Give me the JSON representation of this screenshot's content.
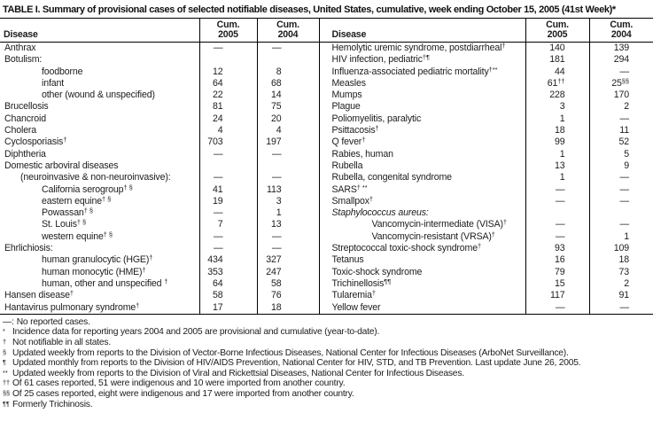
{
  "title": "TABLE I. Summary of provisional cases of selected notifiable diseases, United States, cumulative, week ending October 15, 2005 (41st Week)*",
  "colors": {
    "text": "#1c1c1c",
    "rule": "#000000",
    "background": "#ffffff"
  },
  "header": {
    "disease_label": "Disease",
    "cum_label": "Cum.",
    "year_2005": "2005",
    "year_2004": "2004"
  },
  "table": {
    "rows_left": [
      {
        "name": "Anthrax",
        "cum2005": "—",
        "cum2004": "—"
      },
      {
        "name": "Botulism:",
        "cum2005": "",
        "cum2004": ""
      },
      {
        "name": "foodborne",
        "indent": 2,
        "cum2005": "12",
        "cum2004": "8"
      },
      {
        "name": "infant",
        "indent": 2,
        "cum2005": "64",
        "cum2004": "68"
      },
      {
        "name": "other (wound & unspecified)",
        "indent": 2,
        "cum2005": "22",
        "cum2004": "14"
      },
      {
        "name": "Brucellosis",
        "cum2005": "81",
        "cum2004": "75"
      },
      {
        "name": "Chancroid",
        "cum2005": "24",
        "cum2004": "20"
      },
      {
        "name": "Cholera",
        "cum2005": "4",
        "cum2004": "4"
      },
      {
        "name": "Cyclosporiasis",
        "sup": "†",
        "cum2005": "703",
        "cum2004": "197"
      },
      {
        "name": "Diphtheria",
        "cum2005": "—",
        "cum2004": "—"
      },
      {
        "name": "Domestic arboviral diseases",
        "cum2005": "",
        "cum2004": ""
      },
      {
        "name": "(neuroinvasive & non-neuroinvasive):",
        "indent": 1,
        "cum2005": "—",
        "cum2004": "—"
      },
      {
        "name": "California serogroup",
        "sup": "† §",
        "indent": 2,
        "cum2005": "41",
        "cum2004": "113"
      },
      {
        "name": "eastern equine",
        "sup": "† §",
        "indent": 2,
        "cum2005": "19",
        "cum2004": "3"
      },
      {
        "name": "Powassan",
        "sup": "† §",
        "indent": 2,
        "cum2005": "—",
        "cum2004": "1"
      },
      {
        "name": "St. Louis",
        "sup": "† §",
        "indent": 2,
        "cum2005": "7",
        "cum2004": "13"
      },
      {
        "name": "western equine",
        "sup": "† §",
        "indent": 2,
        "cum2005": "—",
        "cum2004": "—"
      },
      {
        "name": "Ehrlichiosis:",
        "cum2005": "—",
        "cum2004": "—"
      },
      {
        "name": "human granulocytic (HGE)",
        "sup": "†",
        "indent": 2,
        "cum2005": "434",
        "cum2004": "327"
      },
      {
        "name": "human monocytic (HME)",
        "sup": "†",
        "indent": 2,
        "cum2005": "353",
        "cum2004": "247"
      },
      {
        "name": "human, other and unspecified ",
        "sup": "†",
        "indent": 2,
        "cum2005": "64",
        "cum2004": "58"
      },
      {
        "name": "Hansen disease",
        "sup": "†",
        "cum2005": "58",
        "cum2004": "76"
      },
      {
        "name": "Hantavirus pulmonary syndrome",
        "sup": "†",
        "cum2005": "17",
        "cum2004": "18"
      }
    ],
    "rows_right": [
      {
        "name": "Hemolytic uremic syndrome, postdiarrheal",
        "sup": "†",
        "cum2005": "140",
        "cum2004": "139"
      },
      {
        "name": "HIV infection, pediatric",
        "sup": "†¶",
        "cum2005": "181",
        "cum2004": "294"
      },
      {
        "name": "Influenza-associated pediatric mortality",
        "sup": "†**",
        "cum2005": "44",
        "cum2004": "—"
      },
      {
        "name": "Measles",
        "cum2005": "61",
        "cum2005_sup": "††",
        "cum2004": "25",
        "cum2004_sup": "§§"
      },
      {
        "name": "Mumps",
        "cum2005": "228",
        "cum2004": "170"
      },
      {
        "name": "Plague",
        "cum2005": "3",
        "cum2004": "2"
      },
      {
        "name": "Poliomyelitis, paralytic",
        "cum2005": "1",
        "cum2004": "—"
      },
      {
        "name": "Psittacosis",
        "sup": "†",
        "cum2005": "18",
        "cum2004": "11"
      },
      {
        "name": "Q fever",
        "sup": "†",
        "cum2005": "99",
        "cum2004": "52"
      },
      {
        "name": "Rabies, human",
        "cum2005": "1",
        "cum2004": "5"
      },
      {
        "name": "Rubella",
        "cum2005": "13",
        "cum2004": "9"
      },
      {
        "name": "Rubella, congenital syndrome",
        "cum2005": "1",
        "cum2004": "—"
      },
      {
        "name": "SARS",
        "sup": "† **",
        "cum2005": "—",
        "cum2004": "—"
      },
      {
        "name": "Smallpox",
        "sup": "†",
        "cum2005": "—",
        "cum2004": "—"
      },
      {
        "name": "Staphylococcus aureus:",
        "italic": true,
        "cum2005": "",
        "cum2004": ""
      },
      {
        "name": "Vancomycin-intermediate (VISA)",
        "sup": "†",
        "indent": 2,
        "cum2005": "—",
        "cum2004": "—"
      },
      {
        "name": "Vancomycin-resistant (VRSA)",
        "sup": "†",
        "indent": 2,
        "cum2005": "—",
        "cum2004": "1"
      },
      {
        "name": "Streptococcal toxic-shock syndrome",
        "sup": "†",
        "cum2005": "93",
        "cum2004": "109"
      },
      {
        "name": "Tetanus",
        "cum2005": "16",
        "cum2004": "18"
      },
      {
        "name": "Toxic-shock syndrome",
        "cum2005": "79",
        "cum2004": "73"
      },
      {
        "name": "Trichinellosis",
        "sup": "¶¶",
        "cum2005": "15",
        "cum2004": "2"
      },
      {
        "name": "Tularemia",
        "sup": "†",
        "cum2005": "117",
        "cum2004": "91"
      },
      {
        "name": "Yellow fever",
        "cum2005": "—",
        "cum2004": "—"
      }
    ]
  },
  "footnotes": [
    {
      "marker": "—:",
      "superscript": false,
      "text": "No reported cases."
    },
    {
      "marker": "*",
      "superscript": true,
      "text": "Incidence data for reporting years 2004 and 2005 are provisional and cumulative (year-to-date)."
    },
    {
      "marker": "†",
      "superscript": true,
      "text": "Not notifiable in all states."
    },
    {
      "marker": "§",
      "superscript": true,
      "text": "Updated weekly from reports to the Division of Vector-Borne Infectious Diseases, National Center for Infectious Diseases (ArboNet Surveillance)."
    },
    {
      "marker": "¶",
      "superscript": true,
      "text": "Updated monthly from reports to the Division of HIV/AIDS Prevention, National Center for HIV, STD, and TB Prevention. Last update June 26, 2005."
    },
    {
      "marker": "**",
      "superscript": true,
      "text": "Updated weekly from reports to the Division of Viral and Rickettsial Diseases, National Center for Infectious Diseases."
    },
    {
      "marker": "††",
      "superscript": true,
      "text": "Of 61 cases reported, 51 were indigenous and 10 were imported from another country."
    },
    {
      "marker": "§§",
      "superscript": true,
      "text": "Of 25 cases reported, eight were indigenous and 17 were imported from another country."
    },
    {
      "marker": "¶¶",
      "superscript": true,
      "text": "Formerly Trichinosis."
    }
  ]
}
